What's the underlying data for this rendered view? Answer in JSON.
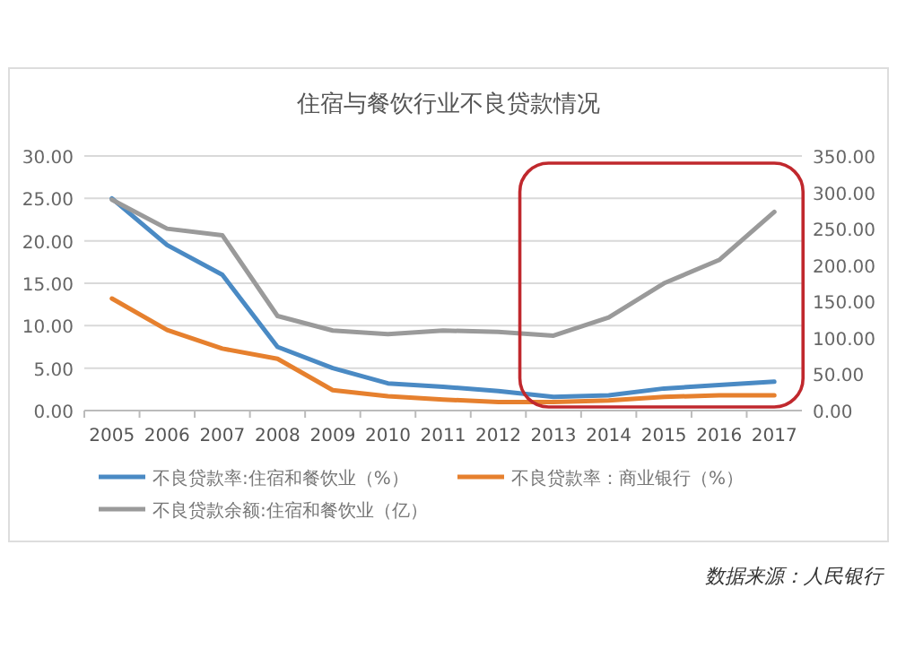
{
  "chart_data": {
    "type": "line",
    "title": "住宿与餐饮行业不良贷款情况",
    "categories": [
      "2005",
      "2006",
      "2007",
      "2008",
      "2009",
      "2010",
      "2011",
      "2012",
      "2013",
      "2014",
      "2015",
      "2016",
      "2017"
    ],
    "series": [
      {
        "name": "不良贷款率:住宿和餐饮业（%）",
        "color": "#4a8ac4",
        "values": [
          25.0,
          19.5,
          16.0,
          7.5,
          5.0,
          3.2,
          2.8,
          2.3,
          1.6,
          1.8,
          2.6,
          3.0,
          3.4
        ]
      },
      {
        "name": "不良贷款率：商业银行（%）",
        "color": "#e6802e",
        "values": [
          13.2,
          9.5,
          7.3,
          6.1,
          2.4,
          1.7,
          1.3,
          1.0,
          1.0,
          1.2,
          1.6,
          1.8,
          1.8
        ]
      },
      {
        "name": "不良贷款余额:住宿和餐饮业（亿）",
        "color": "#9a9a9a",
        "axis": "y2",
        "values": [
          290,
          250,
          241,
          130,
          110,
          105,
          110,
          108,
          103,
          128,
          175,
          207,
          273
        ]
      }
    ],
    "ylim": [
      0,
      30
    ],
    "yticks": [
      {
        "value": 0,
        "label": "0.00"
      },
      {
        "value": 5,
        "label": "5.00"
      },
      {
        "value": 10,
        "label": "10.00"
      },
      {
        "value": 15,
        "label": "15.00"
      },
      {
        "value": 20,
        "label": "20.00"
      },
      {
        "value": 25,
        "label": "25.00"
      },
      {
        "value": 30,
        "label": "30.00"
      }
    ],
    "y2lim": [
      0,
      350
    ],
    "y2ticks": [
      {
        "value": 0,
        "label": "0.00"
      },
      {
        "value": 50,
        "label": "50.00"
      },
      {
        "value": 100,
        "label": "100.00"
      },
      {
        "value": 150,
        "label": "150.00"
      },
      {
        "value": 200,
        "label": "200.00"
      },
      {
        "value": 250,
        "label": "250.00"
      },
      {
        "value": 300,
        "label": "300.00"
      },
      {
        "value": 350,
        "label": "350.00"
      }
    ],
    "grid": "y",
    "legend": "bottom",
    "marker": "none",
    "line_style": "solid",
    "annotations": [
      "数据来源：人民银行"
    ]
  }
}
